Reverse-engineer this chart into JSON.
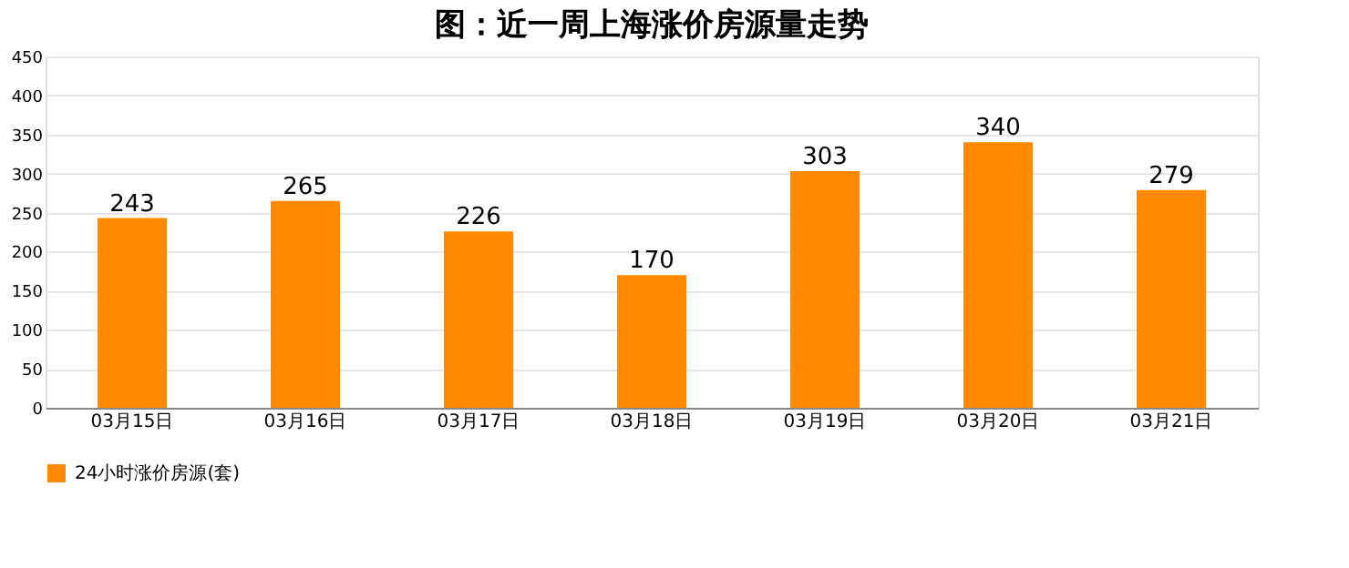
{
  "chart_data": {
    "type": "bar",
    "title": "图：近一周上海涨价房源量走势",
    "categories": [
      "03月15日",
      "03月16日",
      "03月17日",
      "03月18日",
      "03月19日",
      "03月20日",
      "03月21日"
    ],
    "series": [
      {
        "name": "24小时涨价房源(套)",
        "color": "#ff8a00",
        "values": [
          243,
          265,
          226,
          170,
          303,
          340,
          279
        ]
      }
    ],
    "ylim": [
      0,
      450
    ],
    "yticks": [
      0,
      50,
      100,
      150,
      200,
      250,
      300,
      350,
      400,
      450
    ],
    "grid": "y",
    "legend": "bottom",
    "data_labels": true
  }
}
